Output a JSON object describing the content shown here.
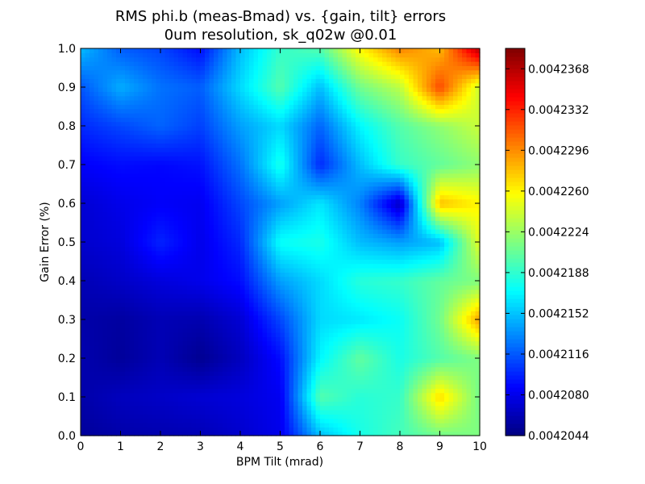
{
  "chart_data": {
    "type": "heatmap",
    "title_line1": "RMS phi.b (meas-Bmad) vs. {gain, tilt} errors",
    "title_line2": "0um resolution, sk_q02w @0.01",
    "xlabel": "BPM Tilt (mrad)",
    "ylabel": "Gain Error (%)",
    "xlim": [
      0,
      10
    ],
    "ylim": [
      0,
      1.0
    ],
    "x": [
      0,
      1,
      2,
      3,
      4,
      5,
      6,
      7,
      8,
      9,
      10
    ],
    "y": [
      0.0,
      0.1,
      0.2,
      0.3,
      0.4,
      0.5,
      0.6,
      0.7,
      0.8,
      0.9,
      1.0
    ],
    "x_tick_labels": [
      "0",
      "1",
      "2",
      "3",
      "4",
      "5",
      "6",
      "7",
      "8",
      "9",
      "10"
    ],
    "y_tick_labels": [
      "0.0",
      "0.1",
      "0.2",
      "0.3",
      "0.4",
      "0.5",
      "0.6",
      "0.7",
      "0.8",
      "0.9",
      "1.0"
    ],
    "z": [
      [
        0.0042053,
        0.0042058,
        0.004206,
        0.0042062,
        0.004207,
        0.004208,
        0.004215,
        0.004218,
        0.0042195,
        0.004221,
        0.0042215
      ],
      [
        0.0042058,
        0.0042065,
        0.0042068,
        0.0042072,
        0.0042075,
        0.0042082,
        0.00422,
        0.0042185,
        0.004219,
        0.004227,
        0.004221
      ],
      [
        0.004206,
        0.0042053,
        0.0042062,
        0.004205,
        0.0042065,
        0.004209,
        0.004217,
        0.0042205,
        0.004218,
        0.00422,
        0.0042215
      ],
      [
        0.0042058,
        0.0042055,
        0.0042062,
        0.004206,
        0.0042072,
        0.004211,
        0.004216,
        0.0042165,
        0.0042175,
        0.004221,
        0.004229
      ],
      [
        0.0042062,
        0.0042068,
        0.0042075,
        0.004208,
        0.004209,
        0.004214,
        0.004216,
        0.0042185,
        0.004219,
        0.0042205,
        0.0042215
      ],
      [
        0.004207,
        0.0042075,
        0.0042098,
        0.004208,
        0.00421,
        0.0042175,
        0.004218,
        0.004215,
        0.004214,
        0.004215,
        0.004225
      ],
      [
        0.0042072,
        0.004208,
        0.0042085,
        0.0042082,
        0.004211,
        0.004214,
        0.0042165,
        0.004213,
        0.0042065,
        0.004228,
        0.004226
      ],
      [
        0.0042085,
        0.004209,
        0.0042088,
        0.0042092,
        0.0042125,
        0.004218,
        0.00421,
        0.004215,
        0.004219,
        0.0042205,
        0.004222
      ],
      [
        0.00421,
        0.004211,
        0.004212,
        0.0042108,
        0.004214,
        0.004216,
        0.004212,
        0.004217,
        0.00422,
        0.004222,
        0.004224
      ],
      [
        0.0042115,
        0.0042145,
        0.0042125,
        0.0042118,
        0.004216,
        0.00422,
        0.004215,
        0.004221,
        0.0042235,
        0.004232,
        0.004224
      ],
      [
        0.004215,
        0.0042118,
        0.004211,
        0.004209,
        0.004215,
        0.004219,
        0.00422,
        0.004226,
        0.00423,
        0.004228,
        0.004237
      ]
    ],
    "zlim": [
      0.0042044,
      0.0042386
    ],
    "colormap": "jet",
    "colorbar_ticks": [
      0.0042044,
      0.004208,
      0.0042116,
      0.0042152,
      0.0042188,
      0.0042224,
      0.004226,
      0.0042296,
      0.0042332,
      0.0042368
    ],
    "colorbar_tick_labels": [
      "0.0042044",
      "0.0042080",
      "0.0042116",
      "0.0042152",
      "0.0042188",
      "0.0042224",
      "0.0042260",
      "0.0042296",
      "0.0042332",
      "0.0042368"
    ],
    "grid": false,
    "legend": "colorbar-right"
  }
}
